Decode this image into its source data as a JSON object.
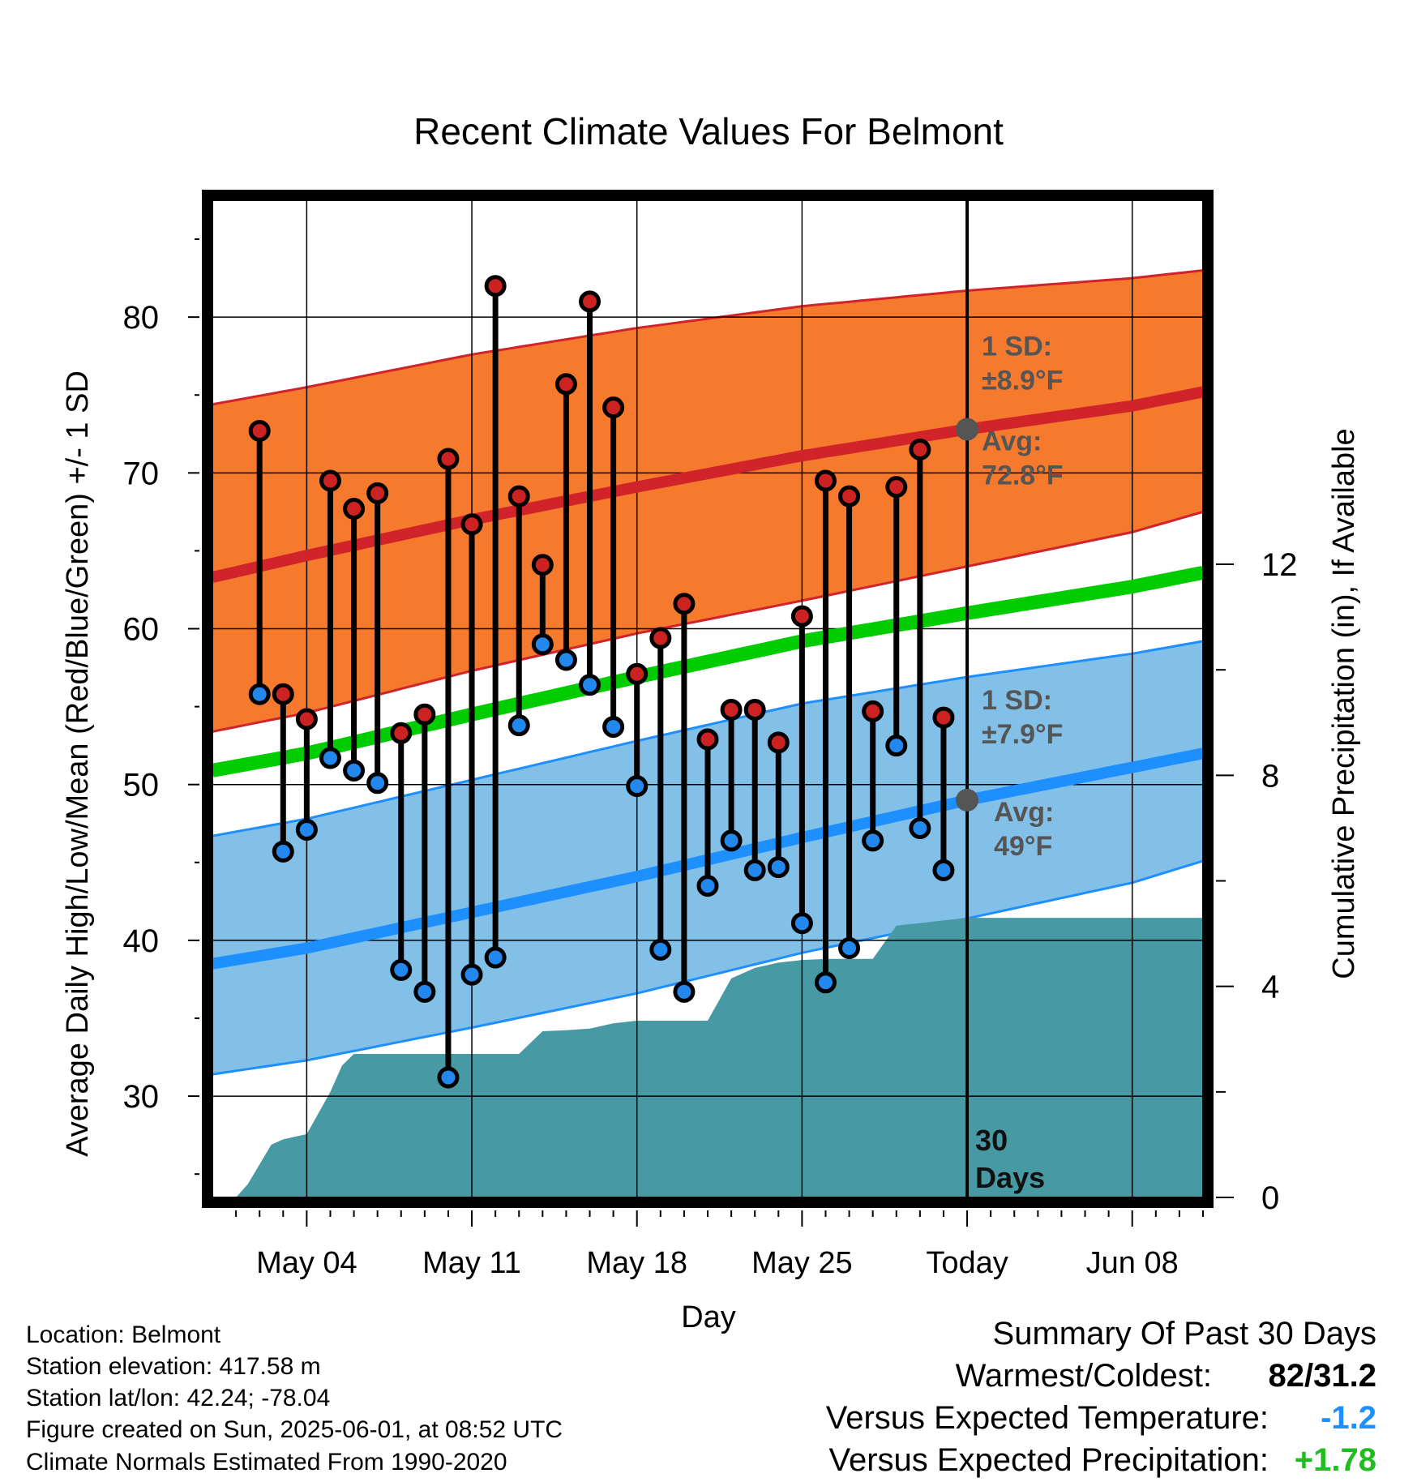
{
  "chart_data": {
    "type": "line",
    "title": "Recent Climate Values For Belmont",
    "xlabel": "Day",
    "ylabel": "Average Daily High/Low/Mean (Red/Blue/Green) +/- 1 SD",
    "y2label": "Cumulative Precipitation (in), If Available",
    "x_range_days": [
      -32,
      10
    ],
    "ylim": [
      23.5,
      87.5
    ],
    "y2lim": [
      0,
      18.9
    ],
    "xticks": [
      {
        "day": -28,
        "label": "May 04"
      },
      {
        "day": -21,
        "label": "May 11"
      },
      {
        "day": -14,
        "label": "May 18"
      },
      {
        "day": -7,
        "label": "May 25"
      },
      {
        "day": 0,
        "label": "Today"
      },
      {
        "day": 7,
        "label": "Jun 08"
      }
    ],
    "yticks": [
      30,
      40,
      50,
      60,
      70,
      80
    ],
    "y2ticks": [
      0,
      4,
      8,
      12
    ],
    "grid": true,
    "today_marker": {
      "day": 0,
      "label_line1": "30",
      "label_line2": "Days"
    },
    "normals": {
      "x": [
        -32,
        -28,
        -21,
        -14,
        -7,
        0,
        7,
        10
      ],
      "high_avg": [
        63.3,
        64.7,
        67.0,
        69.1,
        71.1,
        72.8,
        74.3,
        75.2
      ],
      "high_upper": [
        74.4,
        75.5,
        77.6,
        79.3,
        80.7,
        81.7,
        82.5,
        83.0
      ],
      "high_lower": [
        53.4,
        54.6,
        57.3,
        59.7,
        61.8,
        64.0,
        66.2,
        67.5
      ],
      "mean_avg": [
        50.9,
        52.0,
        54.5,
        56.9,
        59.2,
        61.0,
        62.7,
        63.6
      ],
      "low_avg": [
        38.5,
        39.5,
        41.8,
        44.1,
        46.6,
        49.0,
        51.1,
        52.0
      ],
      "low_upper": [
        46.7,
        47.8,
        50.3,
        52.8,
        55.2,
        56.9,
        58.4,
        59.2
      ],
      "low_lower": [
        31.4,
        32.3,
        34.4,
        36.6,
        39.2,
        41.4,
        43.7,
        45.1
      ]
    },
    "annotations": {
      "high_sd_label": "1 SD:",
      "high_sd_value": "±8.9°F",
      "high_avg_label": "Avg:",
      "high_avg_value": "72.8°F",
      "low_sd_label": "1 SD:",
      "low_sd_value": "±7.9°F",
      "low_avg_label": "Avg:",
      "low_avg_value": "49°F"
    },
    "daily": {
      "day": [
        -30,
        -29,
        -28,
        -27,
        -26,
        -25,
        -24,
        -23,
        -22,
        -21,
        -20,
        -19,
        -18,
        -17,
        -16,
        -15,
        -14,
        -13,
        -12,
        -11,
        -10,
        -9,
        -8,
        -7,
        -6,
        -5,
        -4,
        -3,
        -2,
        -1
      ],
      "high": [
        72.7,
        55.8,
        54.2,
        69.5,
        67.7,
        68.7,
        53.3,
        54.5,
        70.9,
        66.7,
        82.0,
        68.5,
        64.1,
        75.7,
        81.0,
        74.2,
        57.1,
        59.4,
        61.6,
        52.9,
        54.8,
        54.8,
        52.7,
        60.8,
        69.5,
        68.5,
        54.7,
        69.1,
        71.5,
        54.3
      ],
      "low": [
        55.8,
        45.7,
        47.1,
        51.7,
        50.9,
        50.1,
        38.1,
        36.7,
        31.2,
        37.8,
        38.9,
        53.8,
        59.0,
        58.0,
        56.4,
        53.7,
        49.9,
        39.4,
        36.7,
        43.5,
        46.4,
        44.5,
        44.7,
        41.1,
        37.3,
        39.5,
        46.4,
        52.5,
        47.2,
        44.5
      ]
    },
    "precip_cumulative": {
      "day": [
        -31.5,
        -31,
        -30.5,
        -29.5,
        -29,
        -28,
        -27,
        -26.5,
        -26,
        -25,
        -24,
        -23,
        -22,
        -21,
        -20,
        -19,
        -18,
        -17,
        -16,
        -15,
        -14,
        -13,
        -12,
        -11,
        -10,
        -9,
        -8,
        -7,
        -6,
        -5,
        -4,
        -3,
        -2,
        -1,
        0,
        1,
        2,
        3,
        4,
        5,
        6,
        7,
        8,
        9,
        10
      ],
      "value": [
        0.0,
        0.0,
        0.25,
        1.0,
        1.1,
        1.2,
        2.0,
        2.5,
        2.72,
        2.72,
        2.72,
        2.72,
        2.72,
        2.72,
        2.72,
        2.72,
        3.15,
        3.17,
        3.2,
        3.3,
        3.35,
        3.35,
        3.35,
        3.35,
        4.15,
        4.35,
        4.45,
        4.5,
        4.52,
        4.52,
        4.52,
        5.15,
        5.2,
        5.25,
        5.3,
        5.3,
        5.3,
        5.3,
        5.3,
        5.3,
        5.3,
        5.3,
        5.3,
        5.3,
        5.3
      ]
    },
    "colors": {
      "high_band": "#f57a2e",
      "high_line": "#d0232a",
      "mean_line": "#00cc00",
      "low_band": "#82c0e8",
      "low_line": "#1e8fff",
      "precip": "#4799a3",
      "high_marker": "#cc2222",
      "low_marker": "#2288ee",
      "annotation_text": "#555555",
      "today_dot": "#555555"
    }
  },
  "info": {
    "location": "Location: Belmont",
    "elevation": "Station elevation: 417.58 m",
    "latlon": "Station lat/lon: 42.24; -78.04",
    "created": "Figure created on Sun, 2025-06-01, at 08:52 UTC",
    "normals": "Climate Normals Estimated From 1990-2020"
  },
  "summary": {
    "title": "Summary Of Past 30 Days",
    "warm_cold_label": "Warmest/Coldest:",
    "warm_cold_value": "82/31.2",
    "temp_label": "Versus Expected Temperature:",
    "temp_value": "-1.2",
    "temp_color": "#1e90ff",
    "precip_label": "Versus Expected Precipitation:",
    "precip_value": "+1.78",
    "precip_color": "#22bb22"
  }
}
